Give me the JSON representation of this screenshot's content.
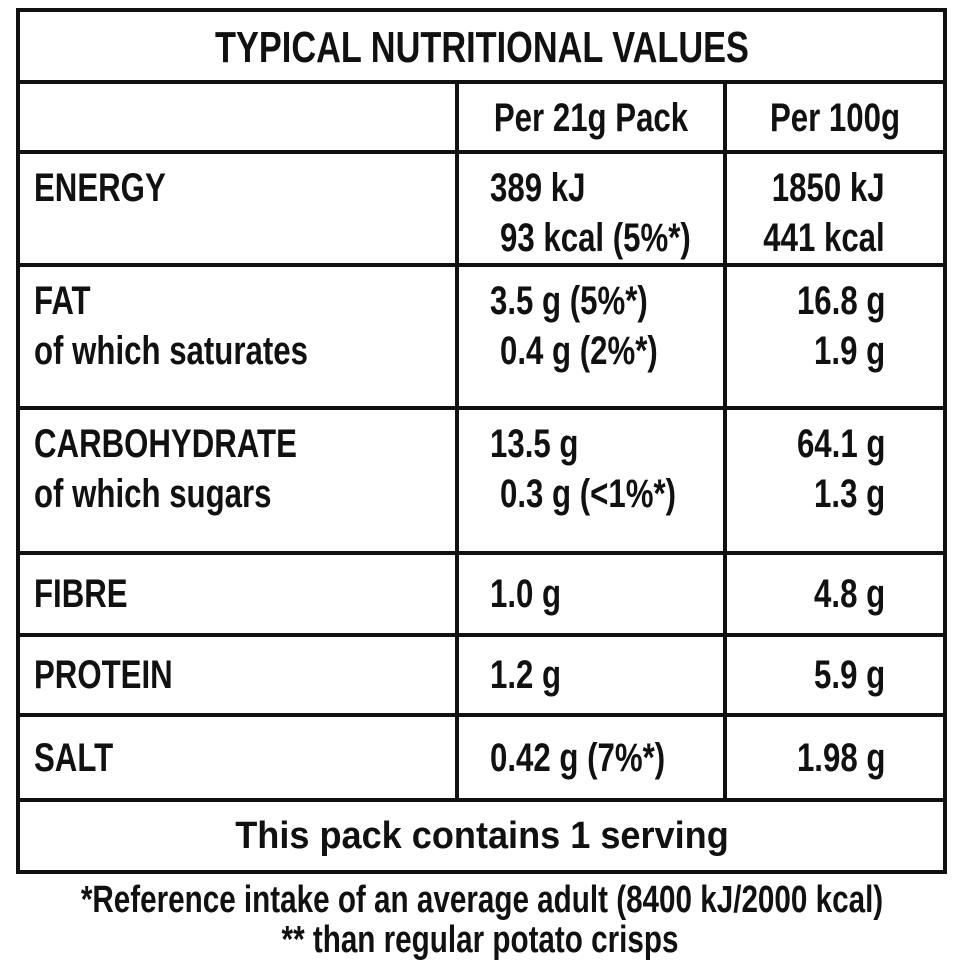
{
  "title": "TYPICAL NUTRITIONAL VALUES",
  "header": [
    "Per 21g Pack",
    "Per 100g"
  ],
  "rows": [
    {
      "label": [
        "ENERGY"
      ],
      "per_pack": [
        "389 kJ",
        "93 kcal (5%*)"
      ],
      "per_100g": [
        "1850 kJ",
        "441 kcal"
      ]
    },
    {
      "label": [
        "FAT",
        "of which saturates"
      ],
      "per_pack": [
        "3.5 g (5%*)",
        "0.4 g (2%*)"
      ],
      "per_100g": [
        "16.8 g",
        "1.9 g"
      ]
    },
    {
      "label": [
        "CARBOHYDRATE",
        "of which sugars"
      ],
      "per_pack": [
        "13.5 g",
        "0.3 g (<1%*)"
      ],
      "per_100g": [
        "64.1 g",
        "1.3 g"
      ]
    },
    {
      "label": [
        "FIBRE"
      ],
      "per_pack": [
        "1.0 g"
      ],
      "per_100g": [
        "4.8 g"
      ]
    },
    {
      "label": [
        "PROTEIN"
      ],
      "per_pack": [
        "1.2 g"
      ],
      "per_100g": [
        "5.9 g"
      ]
    },
    {
      "label": [
        "SALT"
      ],
      "per_pack": [
        "0.42 g (7%*)"
      ],
      "per_100g": [
        "1.98 g"
      ]
    }
  ],
  "serving": "This pack contains 1 serving",
  "footnotes": [
    "*Reference intake of an average adult (8400 kJ/2000 kcal)",
    "** than regular potato crisps"
  ]
}
